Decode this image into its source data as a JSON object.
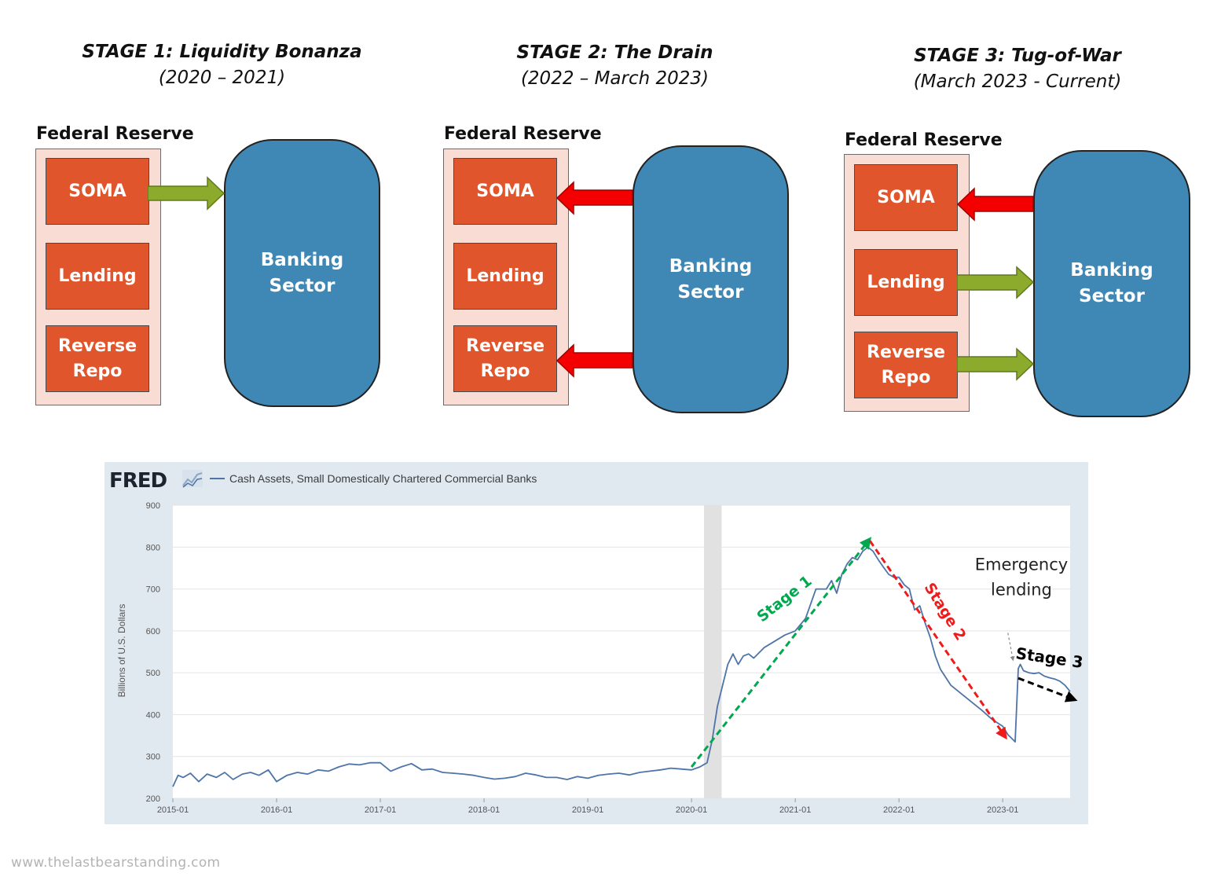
{
  "stages": [
    {
      "title": "STAGE 1: Liquidity Bonanza",
      "period": "(2020 – 2021)"
    },
    {
      "title": "STAGE 2: The Drain",
      "period": "(2022 – March 2023)"
    },
    {
      "title": "STAGE 3: Tug-of-War",
      "period": "(March 2023 - Current)"
    }
  ],
  "diagram": {
    "fed_label": "Federal Reserve",
    "soma": "SOMA",
    "lending": "Lending",
    "reverse_repo": "Reverse\nRepo",
    "banking_sector": "Banking\nSector"
  },
  "flows": {
    "stage1": {
      "soma": "to_bank",
      "lending": "none",
      "reverse_repo": "none"
    },
    "stage2": {
      "soma": "to_fed",
      "lending": "none",
      "reverse_repo": "to_fed"
    },
    "stage3": {
      "soma": "to_fed",
      "lending": "to_bank",
      "reverse_repo": "to_bank"
    }
  },
  "colors": {
    "fed_panel": "#f9ddd4",
    "fed_box": "#e0552b",
    "bank": "#3f87b5",
    "arrow_green": "#8cab2c",
    "arrow_red": "#f40000",
    "series_line": "#4e74a8",
    "stage1_annotation": "#00a84f",
    "stage2_annotation": "#ee1b1b",
    "stage3_annotation": "#000000"
  },
  "fred": {
    "logo": "FRED",
    "series_name": "Cash Assets, Small Domestically Chartered Commercial Banks"
  },
  "chart_data": {
    "type": "line",
    "title": "Cash Assets, Small Domestically Chartered Commercial Banks",
    "ylabel": "Billions of U.S. Dollars",
    "xlabel": "",
    "ylim": [
      200,
      900
    ],
    "yticks": [
      200,
      300,
      400,
      500,
      600,
      700,
      800,
      900
    ],
    "xlim": [
      2015.0,
      2023.65
    ],
    "xticks": [
      {
        "value": 2015.0,
        "label": "2015-01"
      },
      {
        "value": 2016.0,
        "label": "2016-01"
      },
      {
        "value": 2017.0,
        "label": "2017-01"
      },
      {
        "value": 2018.0,
        "label": "2018-01"
      },
      {
        "value": 2019.0,
        "label": "2019-01"
      },
      {
        "value": 2020.0,
        "label": "2020-01"
      },
      {
        "value": 2021.0,
        "label": "2021-01"
      },
      {
        "value": 2022.0,
        "label": "2022-01"
      },
      {
        "value": 2023.0,
        "label": "2023-01"
      }
    ],
    "recession": [
      2020.12,
      2020.29
    ],
    "series": [
      {
        "name": "Cash Assets, Small Domestically Chartered Commercial Banks",
        "x": [
          2015.0,
          2015.05,
          2015.1,
          2015.17,
          2015.25,
          2015.33,
          2015.42,
          2015.5,
          2015.58,
          2015.67,
          2015.75,
          2015.83,
          2015.92,
          2016.0,
          2016.1,
          2016.2,
          2016.3,
          2016.4,
          2016.5,
          2016.6,
          2016.7,
          2016.8,
          2016.9,
          2017.0,
          2017.1,
          2017.2,
          2017.3,
          2017.4,
          2017.5,
          2017.6,
          2017.7,
          2017.8,
          2017.9,
          2018.0,
          2018.1,
          2018.2,
          2018.3,
          2018.4,
          2018.5,
          2018.6,
          2018.7,
          2018.8,
          2018.9,
          2019.0,
          2019.1,
          2019.2,
          2019.3,
          2019.4,
          2019.5,
          2019.6,
          2019.7,
          2019.8,
          2019.9,
          2020.0,
          2020.08,
          2020.15,
          2020.2,
          2020.25,
          2020.3,
          2020.35,
          2020.4,
          2020.45,
          2020.5,
          2020.55,
          2020.6,
          2020.7,
          2020.8,
          2020.9,
          2021.0,
          2021.1,
          2021.2,
          2021.3,
          2021.35,
          2021.4,
          2021.45,
          2021.5,
          2021.55,
          2021.6,
          2021.65,
          2021.7,
          2021.75,
          2021.8,
          2021.85,
          2021.9,
          2021.95,
          2022.0,
          2022.05,
          2022.1,
          2022.15,
          2022.2,
          2022.25,
          2022.3,
          2022.35,
          2022.4,
          2022.5,
          2022.6,
          2022.7,
          2022.8,
          2022.9,
          2023.0,
          2023.05,
          2023.1,
          2023.12,
          2023.15,
          2023.17,
          2023.2,
          2023.25,
          2023.3,
          2023.35,
          2023.4,
          2023.45,
          2023.5,
          2023.55,
          2023.6,
          2023.65
        ],
        "values": [
          228,
          255,
          250,
          260,
          240,
          258,
          250,
          262,
          245,
          258,
          262,
          255,
          268,
          240,
          255,
          262,
          258,
          268,
          265,
          275,
          282,
          280,
          285,
          285,
          265,
          275,
          283,
          268,
          270,
          262,
          260,
          258,
          255,
          250,
          246,
          248,
          252,
          260,
          256,
          250,
          250,
          245,
          252,
          248,
          255,
          258,
          260,
          256,
          262,
          265,
          268,
          272,
          270,
          268,
          275,
          285,
          340,
          420,
          470,
          520,
          545,
          520,
          540,
          545,
          535,
          560,
          575,
          590,
          600,
          630,
          700,
          700,
          720,
          690,
          735,
          760,
          775,
          770,
          790,
          800,
          790,
          770,
          752,
          735,
          728,
          728,
          710,
          700,
          650,
          660,
          620,
          585,
          540,
          508,
          470,
          450,
          430,
          410,
          388,
          372,
          352,
          340,
          335,
          510,
          520,
          505,
          500,
          498,
          500,
          492,
          488,
          485,
          480,
          470,
          455
        ]
      }
    ],
    "annotations": [
      {
        "label": "Stage 1",
        "from": [
          2020.0,
          275
        ],
        "to": [
          2021.72,
          820
        ],
        "color": "#00a84f"
      },
      {
        "label": "Stage 2",
        "from": [
          2021.72,
          815
        ],
        "to": [
          2023.03,
          345
        ],
        "color": "#ee1b1b"
      },
      {
        "label": "Stage 3",
        "from": [
          2023.15,
          487
        ],
        "to": [
          2023.7,
          435
        ],
        "color": "#000000"
      },
      {
        "label": "Emergency\nlending",
        "from": [
          2023.05,
          595
        ],
        "to": [
          2023.1,
          530
        ],
        "color": "#888888"
      }
    ]
  },
  "watermark": "www.thelastbearstanding.com"
}
